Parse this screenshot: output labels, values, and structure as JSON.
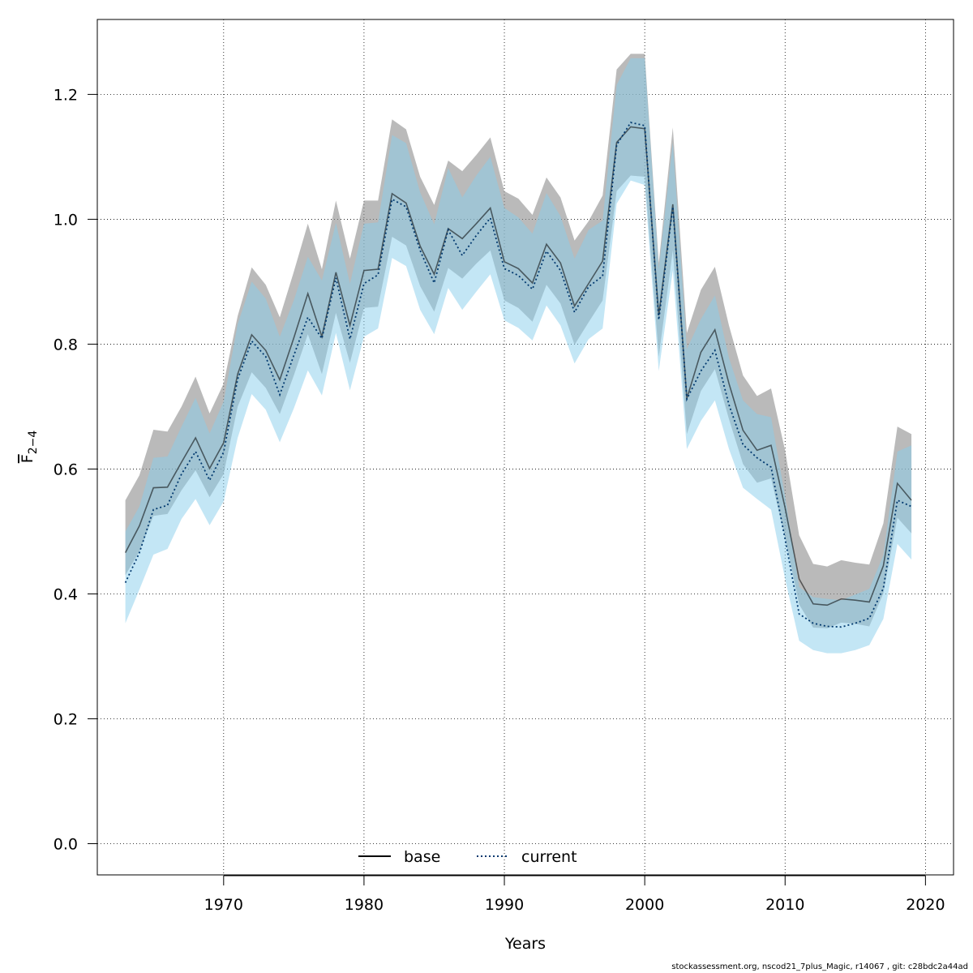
{
  "chart_data": {
    "type": "line",
    "xlabel": "Years",
    "ylabel_main": "F",
    "ylabel_sub": "2−4",
    "xlim": [
      1961,
      2022
    ],
    "ylim": [
      -0.05,
      1.32
    ],
    "x_ticks": [
      1970,
      1980,
      1990,
      2000,
      2010,
      2020
    ],
    "y_ticks": [
      0.0,
      0.2,
      0.4,
      0.6,
      0.8,
      1.0,
      1.2
    ],
    "y_tick_labels": [
      "0.0",
      "0.2",
      "0.4",
      "0.6",
      "0.8",
      "1.0",
      "1.2"
    ],
    "grid": true,
    "legend_position": "bottom-center",
    "x": [
      1963,
      1964,
      1965,
      1966,
      1967,
      1968,
      1969,
      1970,
      1971,
      1972,
      1973,
      1974,
      1975,
      1976,
      1977,
      1978,
      1979,
      1980,
      1981,
      1982,
      1983,
      1984,
      1985,
      1986,
      1987,
      1988,
      1989,
      1990,
      1991,
      1992,
      1993,
      1994,
      1995,
      1996,
      1997,
      1998,
      1999,
      2000,
      2001,
      2002,
      2003,
      2004,
      2005,
      2006,
      2007,
      2008,
      2009,
      2010,
      2011,
      2012,
      2013,
      2014,
      2015,
      2016,
      2017,
      2018,
      2019
    ],
    "series": [
      {
        "name": "base",
        "line_style": "solid",
        "values": [
          0.466,
          0.509,
          0.57,
          0.571,
          0.611,
          0.65,
          0.601,
          0.642,
          0.752,
          0.815,
          0.79,
          0.743,
          0.81,
          0.881,
          0.812,
          0.915,
          0.83,
          0.918,
          0.92,
          1.041,
          1.026,
          0.957,
          0.912,
          0.985,
          0.969,
          0.993,
          1.018,
          0.932,
          0.921,
          0.898,
          0.96,
          0.93,
          0.861,
          0.897,
          0.933,
          1.123,
          1.148,
          1.145,
          0.846,
          1.024,
          0.713,
          0.787,
          0.823,
          0.737,
          0.662,
          0.63,
          0.638,
          0.538,
          0.424,
          0.384,
          0.382,
          0.392,
          0.39,
          0.387,
          0.445,
          0.577,
          0.55
        ],
        "lower": [
          0.43,
          0.468,
          0.525,
          0.528,
          0.566,
          0.598,
          0.555,
          0.592,
          0.7,
          0.755,
          0.73,
          0.688,
          0.75,
          0.816,
          0.752,
          0.85,
          0.77,
          0.858,
          0.86,
          0.972,
          0.958,
          0.893,
          0.852,
          0.922,
          0.905,
          0.929,
          0.95,
          0.87,
          0.858,
          0.836,
          0.895,
          0.865,
          0.799,
          0.835,
          0.87,
          1.045,
          1.07,
          1.068,
          0.78,
          0.95,
          0.656,
          0.725,
          0.76,
          0.68,
          0.608,
          0.578,
          0.585,
          0.49,
          0.383,
          0.346,
          0.345,
          0.354,
          0.352,
          0.348,
          0.401,
          0.522,
          0.497
        ],
        "upper": [
          0.55,
          0.59,
          0.663,
          0.66,
          0.7,
          0.748,
          0.689,
          0.737,
          0.845,
          0.923,
          0.895,
          0.843,
          0.916,
          0.993,
          0.92,
          1.03,
          0.937,
          1.03,
          1.03,
          1.16,
          1.144,
          1.068,
          1.023,
          1.094,
          1.077,
          1.103,
          1.131,
          1.045,
          1.033,
          1.007,
          1.067,
          1.035,
          0.966,
          0.997,
          1.038,
          1.24,
          1.265,
          1.265,
          0.93,
          1.147,
          0.818,
          0.887,
          0.924,
          0.83,
          0.75,
          0.717,
          0.729,
          0.63,
          0.494,
          0.448,
          0.444,
          0.454,
          0.45,
          0.447,
          0.513,
          0.668,
          0.656
        ]
      },
      {
        "name": "current",
        "line_style": "dotted",
        "values": [
          0.418,
          0.466,
          0.535,
          0.542,
          0.592,
          0.628,
          0.582,
          0.627,
          0.744,
          0.805,
          0.78,
          0.719,
          0.782,
          0.843,
          0.809,
          0.906,
          0.808,
          0.897,
          0.911,
          1.032,
          1.02,
          0.95,
          0.898,
          0.983,
          0.942,
          0.974,
          1.002,
          0.921,
          0.91,
          0.888,
          0.949,
          0.918,
          0.851,
          0.892,
          0.909,
          1.119,
          1.155,
          1.15,
          0.839,
          1.02,
          0.712,
          0.757,
          0.79,
          0.703,
          0.639,
          0.618,
          0.603,
          0.488,
          0.368,
          0.353,
          0.348,
          0.347,
          0.353,
          0.361,
          0.409,
          0.55,
          0.54
        ],
        "lower": [
          0.353,
          0.407,
          0.463,
          0.472,
          0.52,
          0.552,
          0.51,
          0.548,
          0.65,
          0.72,
          0.695,
          0.643,
          0.697,
          0.758,
          0.718,
          0.818,
          0.726,
          0.812,
          0.825,
          0.938,
          0.925,
          0.855,
          0.816,
          0.89,
          0.855,
          0.884,
          0.912,
          0.838,
          0.826,
          0.806,
          0.862,
          0.83,
          0.769,
          0.808,
          0.825,
          1.025,
          1.062,
          1.055,
          0.757,
          0.918,
          0.632,
          0.677,
          0.71,
          0.632,
          0.57,
          0.552,
          0.535,
          0.424,
          0.325,
          0.31,
          0.305,
          0.305,
          0.31,
          0.318,
          0.36,
          0.48,
          0.455
        ],
        "upper": [
          0.5,
          0.54,
          0.618,
          0.62,
          0.668,
          0.714,
          0.657,
          0.708,
          0.832,
          0.9,
          0.873,
          0.812,
          0.87,
          0.94,
          0.902,
          0.994,
          0.897,
          0.993,
          0.995,
          1.135,
          1.122,
          1.043,
          0.992,
          1.082,
          1.035,
          1.07,
          1.1,
          1.018,
          1.003,
          0.977,
          1.042,
          1.005,
          0.937,
          0.983,
          0.998,
          1.215,
          1.258,
          1.258,
          0.92,
          1.123,
          0.792,
          0.84,
          0.878,
          0.778,
          0.71,
          0.688,
          0.683,
          0.556,
          0.411,
          0.395,
          0.392,
          0.39,
          0.399,
          0.408,
          0.462,
          0.628,
          0.638
        ]
      }
    ]
  },
  "footer_text": "stockassessment.org, nscod21_7plus_Magic, r14067 , git: c28bdc2a44ad",
  "colors": {
    "base_band": "#8c8c8c",
    "current_band": "#87ceeb",
    "base_line": "#000000",
    "current_line": "#00386e",
    "grid": "#000000"
  }
}
